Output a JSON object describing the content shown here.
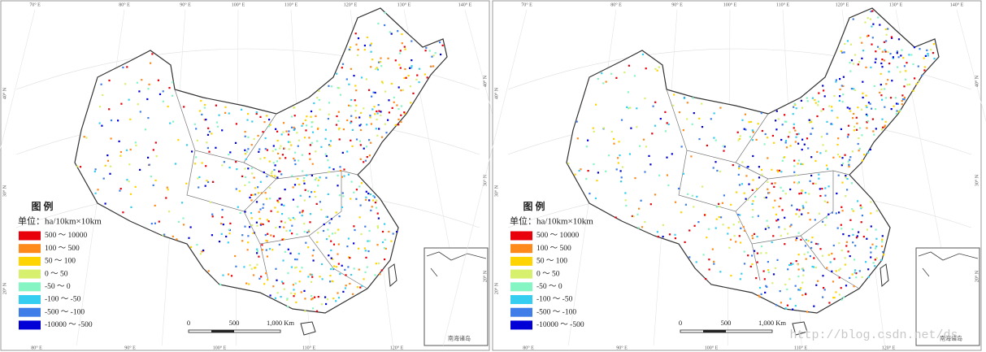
{
  "panels": [
    {
      "legend": {
        "title": "图 例",
        "unit": "单位：ha/10km×10km",
        "items": [
          {
            "label": "500 ～ 10000",
            "color": "#e8000b"
          },
          {
            "label": "100 ～ 500",
            "color": "#ff8a1c"
          },
          {
            "label": "50 ～ 100",
            "color": "#ffd400"
          },
          {
            "label": "0 ～ 50",
            "color": "#d7f06e"
          },
          {
            "label": "-50 ～ 0",
            "color": "#86f5c4"
          },
          {
            "label": "-100 ～ -50",
            "color": "#35cdf0"
          },
          {
            "label": "-500 ～ -100",
            "color": "#3f7ee8"
          },
          {
            "label": "-10000 ～ -500",
            "color": "#0000d6"
          }
        ]
      },
      "scale_labels": [
        "0",
        "500",
        "1,000 Km"
      ],
      "inset_label": "南海诸岛",
      "top_lon_labels": [
        "70° E",
        "80° E",
        "90° E",
        "100° E",
        "110° E",
        "120° E",
        "130° E",
        "140° E"
      ],
      "bottom_lon_labels": [
        "80° E",
        "90° E",
        "100° E",
        "110° E",
        "120° E"
      ],
      "left_lat_labels": [
        "40° N",
        "30° N",
        "20° N"
      ],
      "right_lat_labels": [
        "40° N",
        "30° N",
        "20° N"
      ]
    },
    {
      "legend": {
        "title": "图 例",
        "unit": "单位：ha/10km×10km",
        "items": [
          {
            "label": "500 ～ 10000",
            "color": "#e8000b"
          },
          {
            "label": "100 ～ 500",
            "color": "#ff8a1c"
          },
          {
            "label": "50 ～ 100",
            "color": "#ffd400"
          },
          {
            "label": "0 ～ 50",
            "color": "#d7f06e"
          },
          {
            "label": "-50 ～ 0",
            "color": "#86f5c4"
          },
          {
            "label": "-100 ～ -50",
            "color": "#35cdf0"
          },
          {
            "label": "-500 ～ -100",
            "color": "#3f7ee8"
          },
          {
            "label": "-10000 ～ -500",
            "color": "#0000d6"
          }
        ]
      },
      "scale_labels": [
        "0",
        "500",
        "1,000 Km"
      ],
      "inset_label": "南海诸岛",
      "top_lon_labels": [
        "70° E",
        "80° E",
        "90° E",
        "100° E",
        "110° E",
        "120° E",
        "130° E",
        "140° E"
      ],
      "bottom_lon_labels": [
        "80° E",
        "90° E",
        "100° E",
        "110° E",
        "120° E"
      ],
      "left_lat_labels": [
        "40° N",
        "30° N",
        "20° N"
      ],
      "right_lat_labels": [
        "40° N",
        "30° N",
        "20° N"
      ]
    }
  ],
  "watermark": "http://blog.csdn.net/ds"
}
